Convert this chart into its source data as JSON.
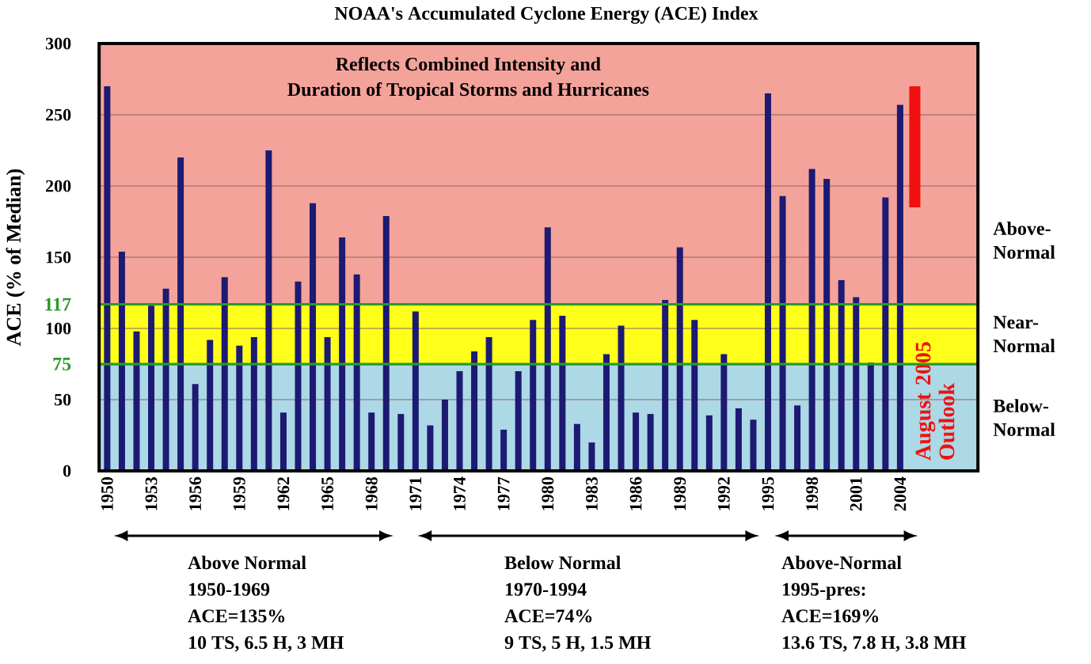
{
  "chart_data": {
    "type": "bar",
    "title": "NOAA's Accumulated Cyclone Energy (ACE) Index",
    "ylabel": "ACE (% of Median)",
    "categories": [
      "1950",
      null,
      null,
      "1953",
      null,
      null,
      "1956",
      null,
      null,
      "1959",
      null,
      null,
      "1962",
      null,
      null,
      "1965",
      null,
      null,
      "1968",
      null,
      null,
      "1971",
      null,
      null,
      "1974",
      null,
      null,
      "1977",
      null,
      null,
      "1980",
      null,
      null,
      "1983",
      null,
      null,
      "1986",
      null,
      null,
      "1989",
      null,
      null,
      "1992",
      null,
      null,
      "1995",
      null,
      null,
      "1998",
      null,
      null,
      "2001",
      null,
      null,
      "2004",
      null
    ],
    "series": [
      {
        "color": "#1c1a72",
        "values": [
          270,
          154,
          98,
          116,
          128,
          220,
          61,
          92,
          136,
          88,
          94,
          225,
          41,
          133,
          188,
          94,
          164,
          138,
          41,
          179,
          40,
          112,
          32,
          50,
          70,
          84,
          94,
          29,
          70,
          106,
          171,
          109,
          33,
          20,
          82,
          102,
          41,
          40,
          120,
          157,
          106,
          39,
          82,
          44,
          36,
          265,
          193,
          46,
          212,
          205,
          134,
          122,
          76,
          192,
          257,
          null
        ]
      },
      {
        "name": "August 2005 Outlook",
        "color": "#f01010",
        "values": [
          null,
          null,
          null,
          null,
          null,
          null,
          null,
          null,
          null,
          null,
          null,
          null,
          null,
          null,
          null,
          null,
          null,
          null,
          null,
          null,
          null,
          null,
          null,
          null,
          null,
          null,
          null,
          null,
          null,
          null,
          null,
          null,
          null,
          null,
          null,
          null,
          null,
          null,
          null,
          null,
          null,
          null,
          null,
          null,
          null,
          null,
          null,
          null,
          null,
          null,
          null,
          null,
          null,
          null,
          null,
          85
        ],
        "base": [
          null,
          null,
          null,
          null,
          null,
          null,
          null,
          null,
          null,
          null,
          null,
          null,
          null,
          null,
          null,
          null,
          null,
          null,
          null,
          null,
          null,
          null,
          null,
          null,
          null,
          null,
          null,
          null,
          null,
          null,
          null,
          null,
          null,
          null,
          null,
          null,
          null,
          null,
          null,
          null,
          null,
          null,
          null,
          null,
          null,
          null,
          null,
          null,
          null,
          null,
          null,
          null,
          null,
          null,
          null,
          185
        ]
      }
    ],
    "ylim": [
      0,
      300
    ],
    "yticks": [
      0,
      50,
      100,
      150,
      200,
      250,
      300
    ],
    "grid": "y",
    "bands": [
      {
        "axis": "y",
        "from": 0,
        "to": 75,
        "label": "Below-Normal",
        "color": "#add8e6"
      },
      {
        "axis": "y",
        "from": 75,
        "to": 117,
        "label": "Near-Normal",
        "color": "#ffff1a"
      },
      {
        "axis": "y",
        "from": 117,
        "to": 300,
        "label": "Above-Normal",
        "color": "#f4a39a"
      }
    ],
    "ref_lines": [
      {
        "axis": "y",
        "value": 117,
        "label": "117",
        "color": "#2a9a2a"
      },
      {
        "axis": "y",
        "value": 75,
        "label": "75",
        "color": "#2a9a2a"
      }
    ],
    "annotations": [
      "Reflects Combined Intensity and",
      "Duration of Tropical Storms and Hurricanes",
      "Above Normal",
      "1950-1969",
      "ACE=135%",
      "10 TS, 6.5 H, 3 MH",
      "Below Normal",
      "1970-1994",
      "ACE=74%",
      "9 TS, 5 H, 1.5 MH",
      "Above-Normal",
      "1995-pres:",
      "ACE=169%",
      "13.6 TS, 7.8 H, 3.8 MH"
    ]
  }
}
